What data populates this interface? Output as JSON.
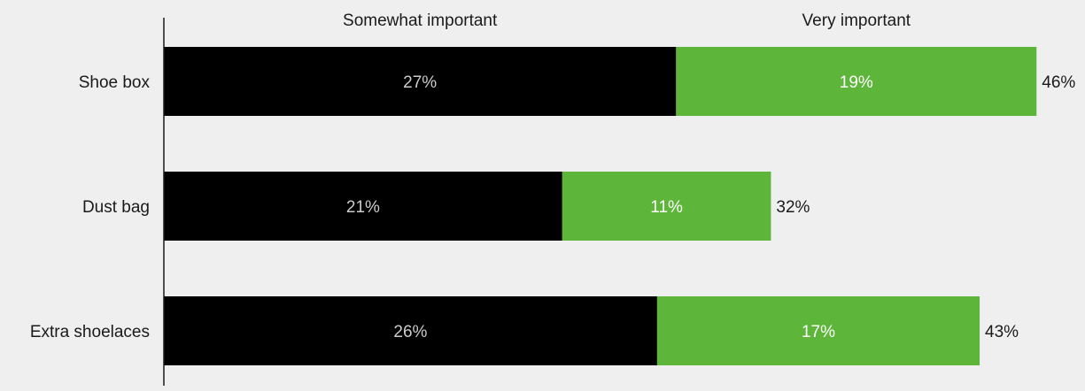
{
  "chart_data": {
    "type": "bar",
    "orientation": "horizontal",
    "stacked": true,
    "categories": [
      "Shoe box",
      "Dust bag",
      "Extra shoelaces"
    ],
    "series": [
      {
        "name": "Somewhat important",
        "color": "#000000",
        "label_color": "#cccccc",
        "values": [
          27,
          21,
          26
        ],
        "labels": [
          "27%",
          "21%",
          "26%"
        ]
      },
      {
        "name": "Very important",
        "color": "#5db53a",
        "label_color": "#ffffff",
        "values": [
          19,
          11,
          17
        ],
        "labels": [
          "19%",
          "11%",
          "17%"
        ]
      }
    ],
    "totals": [
      46,
      32,
      43
    ],
    "total_labels": [
      "46%",
      "32%",
      "43%"
    ],
    "xlim": [
      0,
      46.5
    ],
    "legend": "top",
    "grid": false,
    "background_color": "#efefef"
  }
}
